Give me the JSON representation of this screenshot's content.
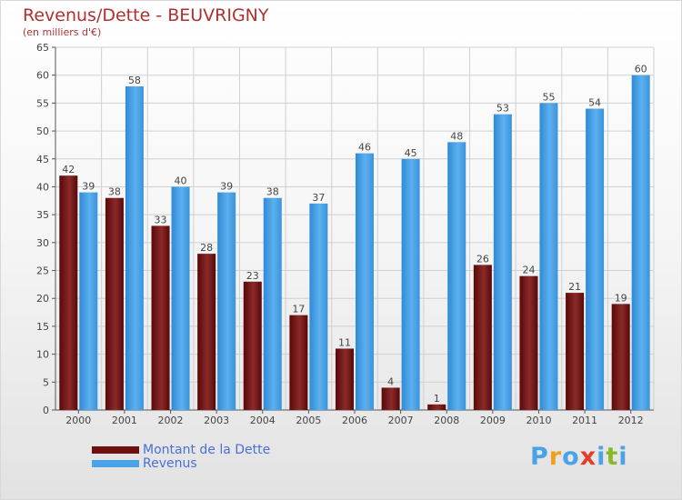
{
  "header": {
    "title": "Revenus/Dette - BEUVRIGNY",
    "subtitle": "(en milliers d'€)"
  },
  "legend": {
    "items": [
      {
        "label": "Montant de la Dette",
        "color": "#6e1010"
      },
      {
        "label": "Revenus",
        "color": "#4aa3e6"
      }
    ]
  },
  "logo": {
    "letters": [
      "P",
      "r",
      "o",
      "x",
      "i",
      "t",
      "i"
    ],
    "colors": [
      "#4aa3e6",
      "#f0a020",
      "#4aa3e6",
      "#e0402a",
      "#4aa3e6",
      "#8ab82a",
      "#4aa3e6"
    ]
  },
  "chart_data": {
    "type": "bar",
    "title": "Revenus/Dette - BEUVRIGNY",
    "subtitle": "(en milliers d'€)",
    "categories": [
      "2000",
      "2001",
      "2002",
      "2003",
      "2004",
      "2005",
      "2006",
      "2007",
      "2008",
      "2009",
      "2010",
      "2011",
      "2012"
    ],
    "series": [
      {
        "name": "Montant de la Dette",
        "color": "#6e1010",
        "values": [
          42,
          38,
          33,
          28,
          23,
          17,
          11,
          4,
          1,
          26,
          24,
          21,
          19
        ]
      },
      {
        "name": "Revenus",
        "color": "#4aa3e6",
        "values": [
          39,
          58,
          40,
          39,
          38,
          37,
          46,
          45,
          48,
          53,
          55,
          54,
          60
        ]
      }
    ],
    "ylim": [
      0,
      65
    ],
    "yticks": [
      0,
      5,
      10,
      15,
      20,
      25,
      30,
      35,
      40,
      45,
      50,
      55,
      60,
      65
    ],
    "grid": true,
    "legend_position": "bottom-left"
  }
}
